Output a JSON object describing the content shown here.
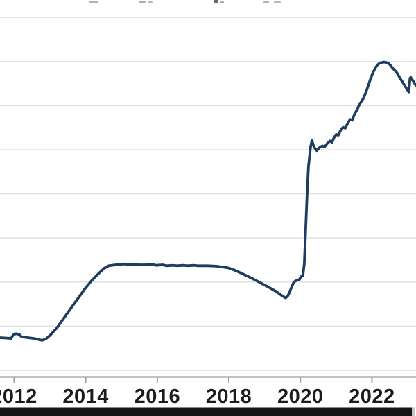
{
  "chart_data": {
    "type": "line",
    "title": "",
    "title_note": "title cropped out of frame; only bottom pixels of letters visible",
    "x_axis": {
      "range": [
        2011.603,
        2023.233
      ],
      "tick_years": [
        2012,
        2014,
        2016,
        2018,
        2020,
        2022
      ],
      "tick_labels": [
        "2012",
        "2014",
        "2016",
        "2018",
        "2020",
        "2022"
      ]
    },
    "y_axis": {
      "range": [
        1.843,
        10.397
      ],
      "gridline_values": [
        2,
        3,
        4,
        5,
        6,
        7,
        8,
        9,
        10
      ],
      "labels_visible": false
    },
    "grid": true,
    "legend": false,
    "series": [
      {
        "name": "series-1",
        "color": "#1f3d60",
        "points": [
          [
            2011.603,
            2.74
          ],
          [
            2011.797,
            2.73
          ],
          [
            2011.913,
            2.72
          ],
          [
            2011.971,
            2.8
          ],
          [
            2012.048,
            2.83
          ],
          [
            2012.145,
            2.81
          ],
          [
            2012.203,
            2.76
          ],
          [
            2012.378,
            2.74
          ],
          [
            2012.572,
            2.72
          ],
          [
            2012.707,
            2.69
          ],
          [
            2012.785,
            2.68
          ],
          [
            2012.882,
            2.71
          ],
          [
            2012.998,
            2.79
          ],
          [
            2013.192,
            2.96
          ],
          [
            2013.386,
            3.18
          ],
          [
            2013.579,
            3.4
          ],
          [
            2013.773,
            3.62
          ],
          [
            2013.967,
            3.84
          ],
          [
            2014.161,
            4.03
          ],
          [
            2014.355,
            4.19
          ],
          [
            2014.51,
            4.31
          ],
          [
            2014.645,
            4.37
          ],
          [
            2014.839,
            4.39
          ],
          [
            2015.091,
            4.41
          ],
          [
            2015.285,
            4.39
          ],
          [
            2015.382,
            4.4
          ],
          [
            2015.479,
            4.39
          ],
          [
            2015.672,
            4.39
          ],
          [
            2015.866,
            4.4
          ],
          [
            2015.963,
            4.38
          ],
          [
            2016.157,
            4.39
          ],
          [
            2016.254,
            4.37
          ],
          [
            2016.448,
            4.38
          ],
          [
            2016.545,
            4.37
          ],
          [
            2016.738,
            4.38
          ],
          [
            2016.835,
            4.37
          ],
          [
            2017.029,
            4.38
          ],
          [
            2017.126,
            4.37
          ],
          [
            2017.32,
            4.37
          ],
          [
            2017.417,
            4.37
          ],
          [
            2017.65,
            4.36
          ],
          [
            2017.843,
            4.34
          ],
          [
            2017.998,
            4.32
          ],
          [
            2018.192,
            4.26
          ],
          [
            2018.425,
            4.17
          ],
          [
            2018.657,
            4.08
          ],
          [
            2018.89,
            3.98
          ],
          [
            2019.122,
            3.88
          ],
          [
            2019.316,
            3.79
          ],
          [
            2019.471,
            3.7
          ],
          [
            2019.587,
            3.64
          ],
          [
            2019.645,
            3.68
          ],
          [
            2019.703,
            3.78
          ],
          [
            2019.762,
            3.9
          ],
          [
            2019.82,
            4.0
          ],
          [
            2019.897,
            4.04
          ],
          [
            2019.975,
            4.06
          ],
          [
            2020.013,
            4.12
          ],
          [
            2020.072,
            4.15
          ],
          [
            2020.11,
            4.42
          ],
          [
            2020.149,
            5.21
          ],
          [
            2020.188,
            5.99
          ],
          [
            2020.227,
            6.62
          ],
          [
            2020.285,
            7.06
          ],
          [
            2020.324,
            7.21
          ],
          [
            2020.382,
            7.06
          ],
          [
            2020.46,
            6.98
          ],
          [
            2020.537,
            7.05
          ],
          [
            2020.615,
            7.09
          ],
          [
            2020.673,
            7.06
          ],
          [
            2020.75,
            7.14
          ],
          [
            2020.828,
            7.2
          ],
          [
            2020.886,
            7.17
          ],
          [
            2020.944,
            7.28
          ],
          [
            2021.002,
            7.35
          ],
          [
            2021.06,
            7.33
          ],
          [
            2021.138,
            7.46
          ],
          [
            2021.196,
            7.51
          ],
          [
            2021.254,
            7.49
          ],
          [
            2021.331,
            7.61
          ],
          [
            2021.39,
            7.69
          ],
          [
            2021.448,
            7.67
          ],
          [
            2021.525,
            7.83
          ],
          [
            2021.583,
            7.9
          ],
          [
            2021.641,
            8.01
          ],
          [
            2021.7,
            8.09
          ],
          [
            2021.758,
            8.16
          ],
          [
            2021.816,
            8.27
          ],
          [
            2021.874,
            8.4
          ],
          [
            2021.932,
            8.54
          ],
          [
            2021.99,
            8.67
          ],
          [
            2022.048,
            8.78
          ],
          [
            2022.106,
            8.87
          ],
          [
            2022.164,
            8.93
          ],
          [
            2022.223,
            8.97
          ],
          [
            2022.281,
            8.98
          ],
          [
            2022.339,
            8.99
          ],
          [
            2022.397,
            8.98
          ],
          [
            2022.455,
            8.97
          ],
          [
            2022.513,
            8.92
          ],
          [
            2022.571,
            8.86
          ],
          [
            2022.629,
            8.81
          ],
          [
            2022.688,
            8.76
          ],
          [
            2022.746,
            8.68
          ],
          [
            2022.804,
            8.6
          ],
          [
            2022.862,
            8.53
          ],
          [
            2022.92,
            8.45
          ],
          [
            2022.978,
            8.38
          ],
          [
            2023.017,
            8.33
          ],
          [
            2023.036,
            8.31
          ],
          [
            2023.065,
            8.62
          ],
          [
            2023.085,
            8.64
          ],
          [
            2023.114,
            8.6
          ],
          [
            2023.153,
            8.56
          ],
          [
            2023.191,
            8.51
          ],
          [
            2023.23,
            8.46
          ]
        ]
      }
    ]
  },
  "colors": {
    "background": "#ffffff",
    "gridline": "#e2e2e2",
    "axis_line": "#c2c2c2",
    "tick": "#a0a0a0",
    "tick_label": "#1c1c1c",
    "line": "#1f3d60",
    "bottom_bar": "#161616",
    "bottom_bar_tail": "#c6c6c6"
  }
}
